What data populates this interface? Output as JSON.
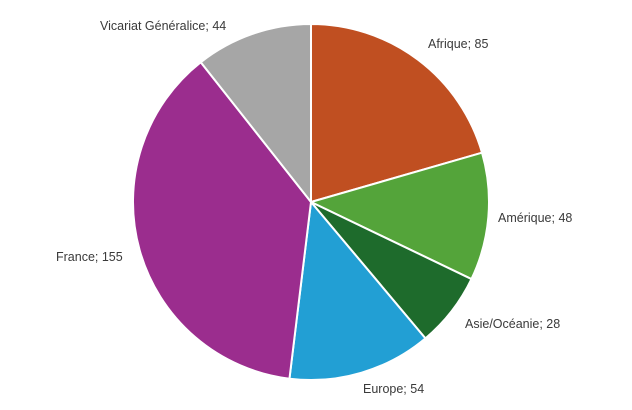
{
  "chart_data": {
    "type": "pie",
    "slices": [
      {
        "name": "Afrique",
        "value": 85,
        "label": "Afrique; 85",
        "color": "#C04F21"
      },
      {
        "name": "Amérique",
        "value": 48,
        "label": "Amérique; 48",
        "color": "#54A43A"
      },
      {
        "name": "Asie/Océanie",
        "value": 28,
        "label": "Asie/Océanie; 28",
        "color": "#1E6B2C"
      },
      {
        "name": "Europe",
        "value": 54,
        "label": "Europe; 54",
        "color": "#229FD4"
      },
      {
        "name": "France",
        "value": 155,
        "label": "France; 155",
        "color": "#9B2D8E"
      },
      {
        "name": "Vicariat Généralice",
        "value": 44,
        "label": "Vicariat Généralice; 44",
        "color": "#A6A6A6"
      }
    ],
    "start": "top",
    "direction": "clockwise",
    "legend": "none",
    "data_labels": "outside"
  }
}
